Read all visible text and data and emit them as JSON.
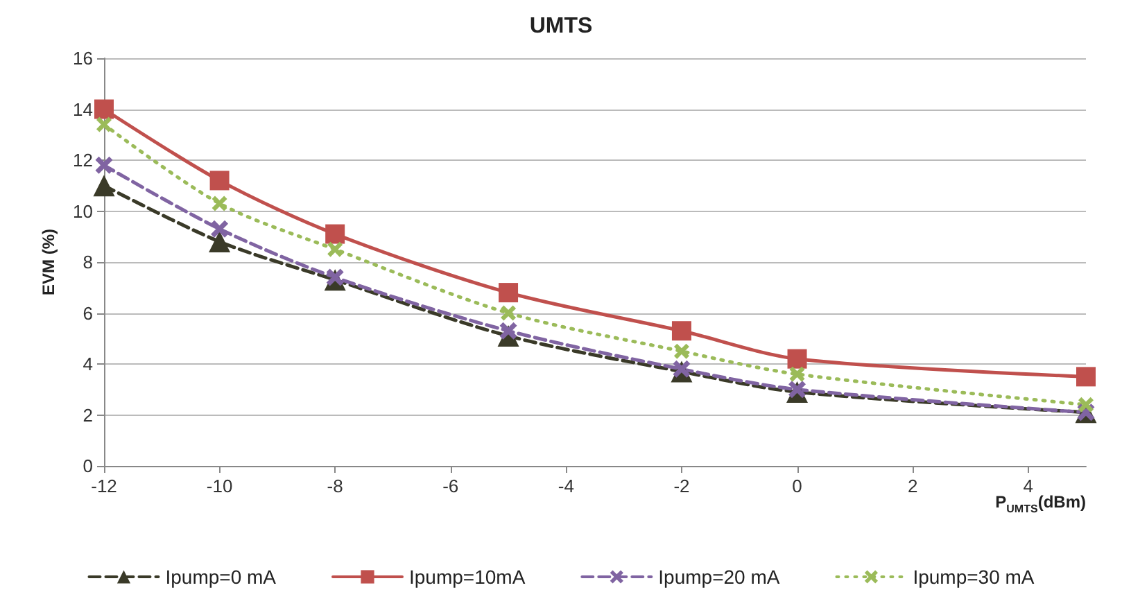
{
  "chart_data": {
    "type": "line",
    "title": "UMTS",
    "xlabel": "P$_{UMTS}$(dBm)",
    "ylabel": "EVM (%)",
    "x": [
      -12,
      -10,
      -8,
      -5,
      -2,
      0,
      5
    ],
    "xlim": [
      -12,
      5
    ],
    "xticks": [
      -12,
      -10,
      -8,
      -6,
      -4,
      -2,
      0,
      2,
      4
    ],
    "ylim": [
      0,
      16
    ],
    "yticks": [
      0,
      2,
      4,
      6,
      8,
      10,
      12,
      14,
      16
    ],
    "grid": "y",
    "legend": "bottom",
    "series": [
      {
        "name": "Ipump=0 mA",
        "color": "#3a3a28",
        "marker": "triangle",
        "line_style": "dashed",
        "values": [
          11.0,
          8.8,
          7.3,
          5.1,
          3.7,
          2.9,
          2.1
        ]
      },
      {
        "name": "Ipump=10mA",
        "color": "#c0504d",
        "marker": "square",
        "line_style": "solid",
        "values": [
          14.0,
          11.2,
          9.1,
          6.8,
          5.3,
          4.2,
          3.5
        ]
      },
      {
        "name": "Ipump=20 mA",
        "color": "#8064a2",
        "marker": "cross",
        "line_style": "dashed",
        "values": [
          11.8,
          9.3,
          7.4,
          5.3,
          3.8,
          3.0,
          2.1
        ]
      },
      {
        "name": "Ipump=30 mA",
        "color": "#9bbb59",
        "marker": "cross",
        "line_style": "dotted",
        "values": [
          13.4,
          10.3,
          8.5,
          6.0,
          4.5,
          3.6,
          2.4
        ]
      }
    ]
  }
}
